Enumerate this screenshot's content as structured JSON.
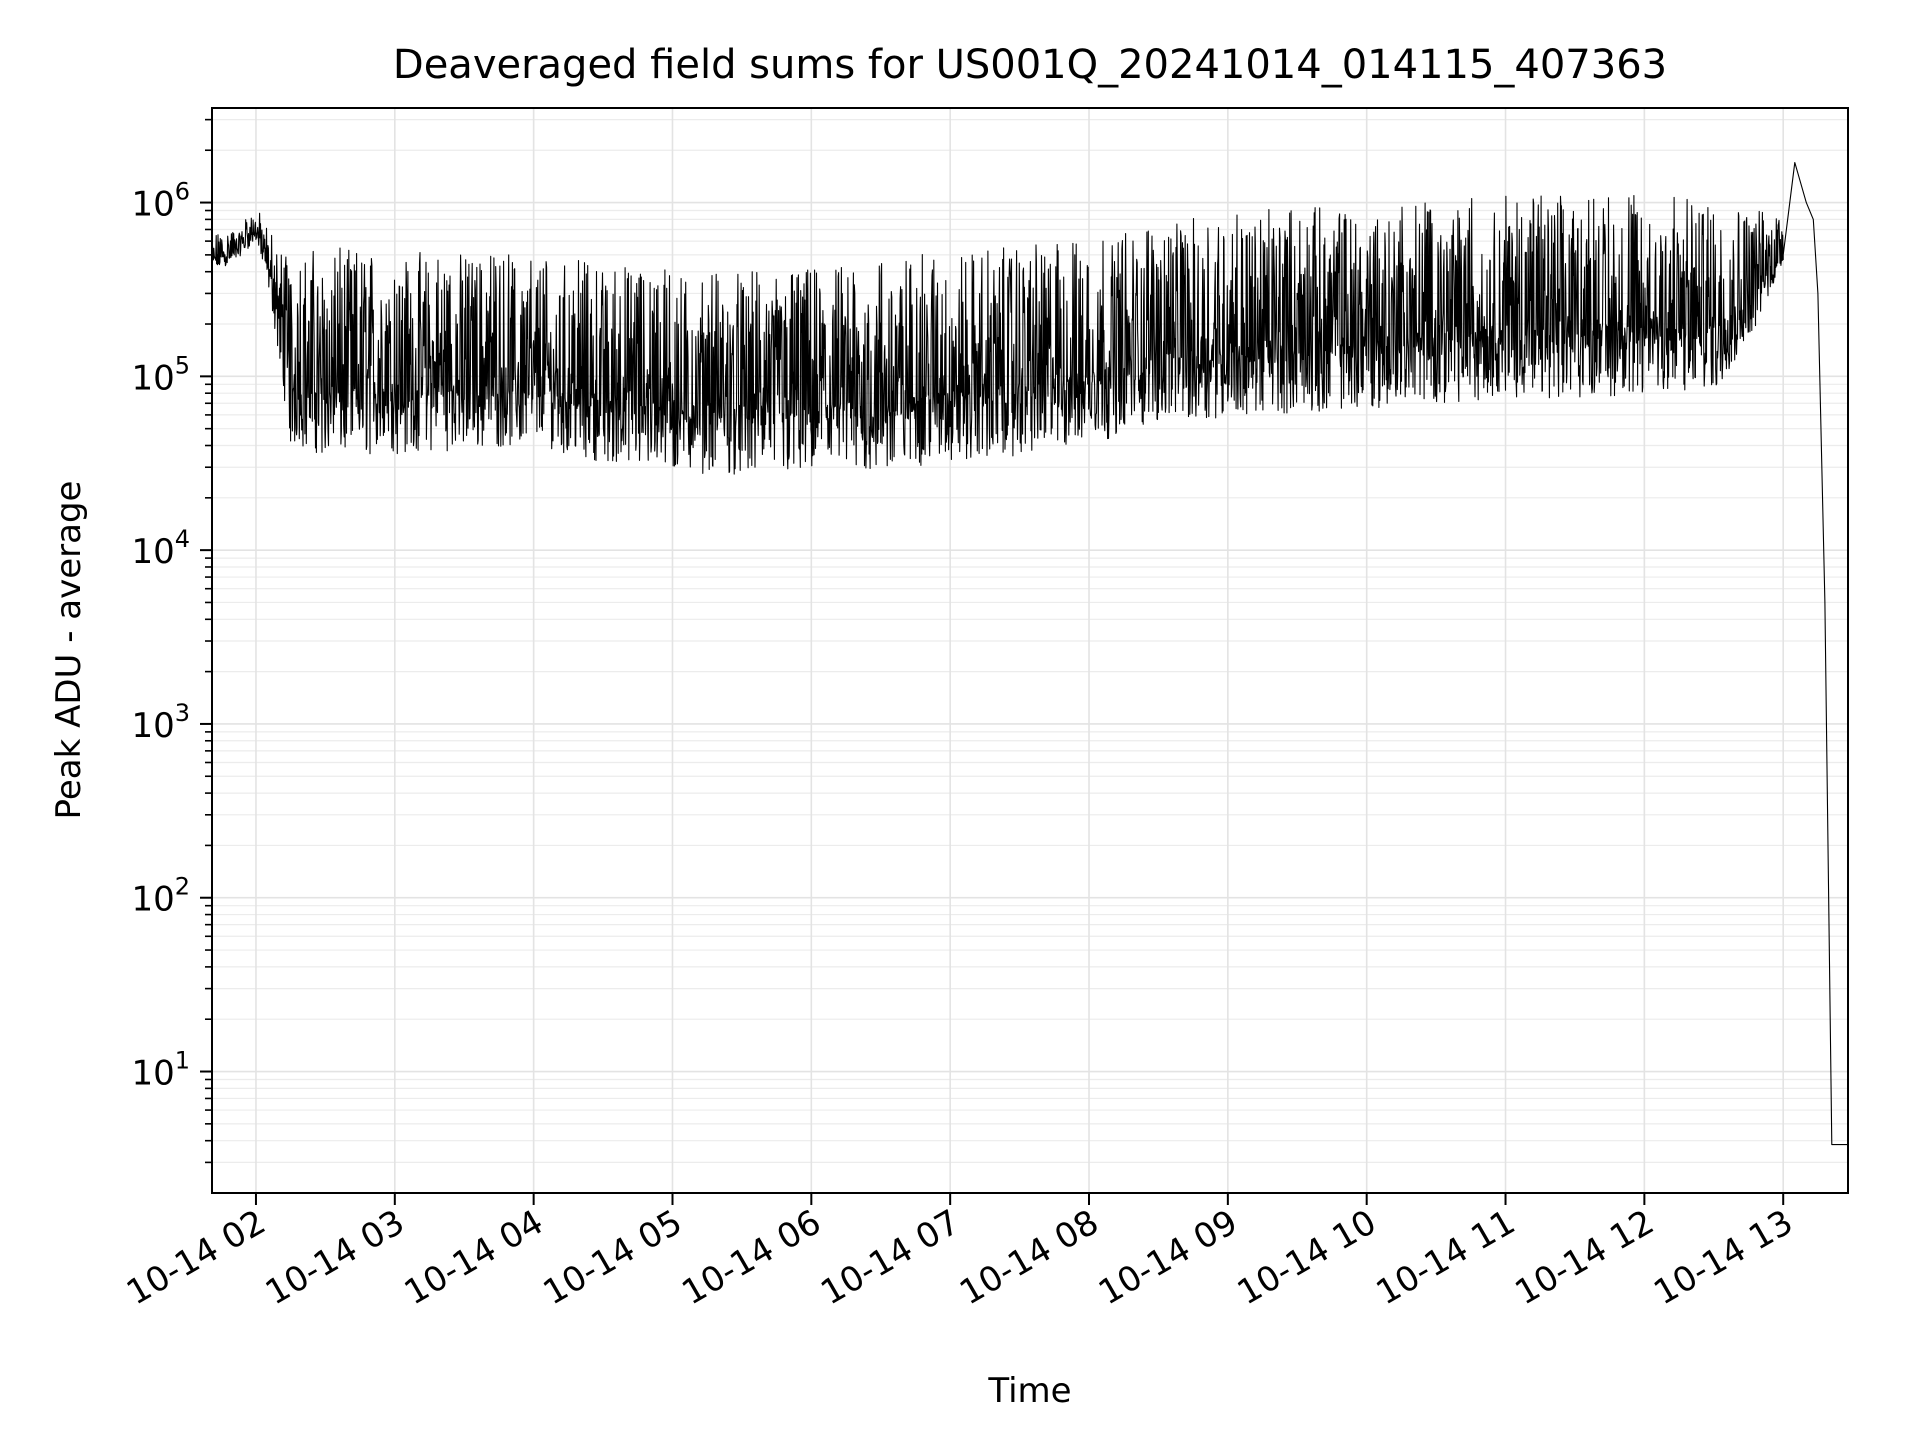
{
  "chart_data": {
    "type": "line",
    "title": "Deaveraged field sums for US001Q_20241014_014115_407363",
    "xlabel": "Time",
    "ylabel": "Peak ADU - average",
    "yscale": "log",
    "ylim": [
      2,
      3500000
    ],
    "xlim": [
      "2024-10-14 01:41",
      "2024-10-14 13:28"
    ],
    "grid": "major and minor",
    "line_color": "#000000",
    "x_ticks": [
      "2024-10-14 02:00",
      "2024-10-14 03:00",
      "2024-10-14 04:00",
      "2024-10-14 05:00",
      "2024-10-14 06:00",
      "2024-10-14 07:00",
      "2024-10-14 08:00",
      "2024-10-14 09:00",
      "2024-10-14 10:00",
      "2024-10-14 11:00",
      "2024-10-14 12:00",
      "2024-10-14 13:00"
    ],
    "x_tick_labels": [
      "10-14 02",
      "10-14 03",
      "10-14 04",
      "10-14 05",
      "10-14 06",
      "10-14 07",
      "10-14 08",
      "10-14 09",
      "10-14 10",
      "10-14 11",
      "10-14 12",
      "10-14 13"
    ],
    "y_ticks": [
      10,
      100,
      1000,
      10000,
      100000,
      1000000
    ],
    "y_tick_labels": [
      {
        "base": "10",
        "exp": "1"
      },
      {
        "base": "10",
        "exp": "2"
      },
      {
        "base": "10",
        "exp": "3"
      },
      {
        "base": "10",
        "exp": "4"
      },
      {
        "base": "10",
        "exp": "5"
      },
      {
        "base": "10",
        "exp": "6"
      }
    ],
    "series": [
      {
        "envelope": [
          {
            "x": "2024-10-14 01:41",
            "low": 400000,
            "high": 650000
          },
          {
            "x": "2024-10-14 01:50",
            "low": 450000,
            "high": 700000
          },
          {
            "x": "2024-10-14 02:00",
            "low": 600000,
            "high": 950000
          },
          {
            "x": "2024-10-14 02:06",
            "low": 300000,
            "high": 700000
          },
          {
            "x": "2024-10-14 02:15",
            "low": 40000,
            "high": 520000
          },
          {
            "x": "2024-10-14 02:30",
            "low": 35000,
            "high": 550000
          },
          {
            "x": "2024-10-14 03:00",
            "low": 35000,
            "high": 540000
          },
          {
            "x": "2024-10-14 03:30",
            "low": 38000,
            "high": 520000
          },
          {
            "x": "2024-10-14 04:00",
            "low": 40000,
            "high": 500000
          },
          {
            "x": "2024-10-14 04:30",
            "low": 32000,
            "high": 450000
          },
          {
            "x": "2024-10-14 05:00",
            "low": 28000,
            "high": 420000
          },
          {
            "x": "2024-10-14 05:30",
            "low": 27000,
            "high": 400000
          },
          {
            "x": "2024-10-14 06:00",
            "low": 27000,
            "high": 420000
          },
          {
            "x": "2024-10-14 06:30",
            "low": 28000,
            "high": 480000
          },
          {
            "x": "2024-10-14 07:00",
            "low": 32000,
            "high": 520000
          },
          {
            "x": "2024-10-14 07:30",
            "low": 35000,
            "high": 560000
          },
          {
            "x": "2024-10-14 08:00",
            "low": 40000,
            "high": 620000
          },
          {
            "x": "2024-10-14 08:30",
            "low": 55000,
            "high": 760000
          },
          {
            "x": "2024-10-14 09:00",
            "low": 58000,
            "high": 880000
          },
          {
            "x": "2024-10-14 09:30",
            "low": 62000,
            "high": 950000
          },
          {
            "x": "2024-10-14 10:00",
            "low": 65000,
            "high": 1000000
          },
          {
            "x": "2024-10-14 10:30",
            "low": 70000,
            "high": 1050000
          },
          {
            "x": "2024-10-14 11:00",
            "low": 75000,
            "high": 1100000
          },
          {
            "x": "2024-10-14 11:30",
            "low": 75000,
            "high": 1100000
          },
          {
            "x": "2024-10-14 12:00",
            "low": 78000,
            "high": 1100000
          },
          {
            "x": "2024-10-14 12:30",
            "low": 80000,
            "high": 1050000
          },
          {
            "x": "2024-10-14 12:50",
            "low": 200000,
            "high": 900000
          },
          {
            "x": "2024-10-14 13:00",
            "low": 450000,
            "high": 1000000
          }
        ],
        "tail": [
          {
            "x": "2024-10-14 13:00",
            "y": 500000
          },
          {
            "x": "2024-10-14 13:05",
            "y": 1700000
          },
          {
            "x": "2024-10-14 13:10",
            "y": 1000000
          },
          {
            "x": "2024-10-14 13:13",
            "y": 800000
          },
          {
            "x": "2024-10-14 13:15",
            "y": 300000
          },
          {
            "x": "2024-10-14 13:18",
            "y": 5000
          },
          {
            "x": "2024-10-14 13:21",
            "y": 3.8
          },
          {
            "x": "2024-10-14 13:28",
            "y": 3.8
          }
        ]
      }
    ]
  }
}
